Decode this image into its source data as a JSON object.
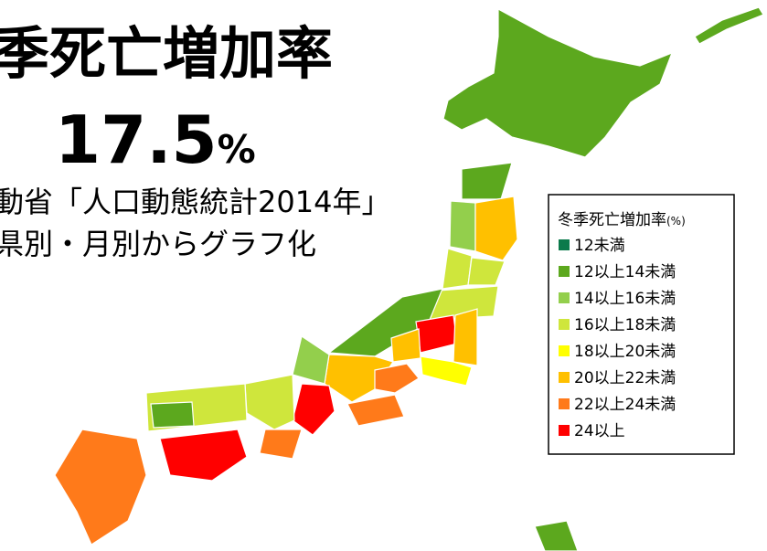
{
  "title": "季死亡増加率",
  "headline": {
    "value": "17.5",
    "unit": "%"
  },
  "subtitle": [
    "動省「人口動態統計2014年」",
    "県別・月別からグラフ化"
  ],
  "legend": {
    "title": "冬季死亡増加率",
    "unit": "(%)",
    "items": [
      {
        "label": "12未満",
        "color": "#0b7a4b"
      },
      {
        "label": "12以上14未満",
        "color": "#5ca81e"
      },
      {
        "label": "14以上16未満",
        "color": "#93cf4c"
      },
      {
        "label": "16以上18未満",
        "color": "#cfe63c"
      },
      {
        "label": "18以上20未満",
        "color": "#ffff00"
      },
      {
        "label": "20以上22未満",
        "color": "#ffc000"
      },
      {
        "label": "22以上24未満",
        "color": "#ff7a1a"
      },
      {
        "label": "24以上",
        "color": "#ff0000"
      }
    ]
  }
}
